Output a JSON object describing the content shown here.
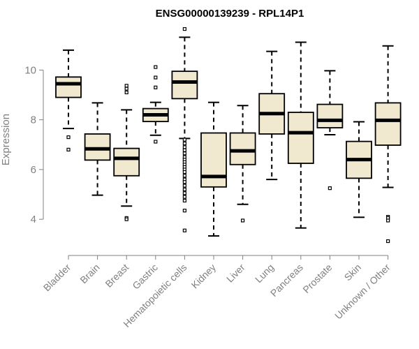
{
  "chart_data": {
    "type": "boxplot",
    "title": "ENSG00000139239 - RPL14P1",
    "xlabel": "",
    "ylabel": "Expression",
    "ylim": [
      3.05,
      11.75
    ],
    "yticks": [
      4,
      6,
      8,
      10
    ],
    "box_fill": "#f0e9d0",
    "box_stroke": "#000000",
    "categories": [
      "Bladder",
      "Brain",
      "Breast",
      "Gastric",
      "Hematopoietic cells",
      "Kidney",
      "Liver",
      "Lung",
      "Pancreas",
      "Prostate",
      "Skin",
      "Unknown / Other"
    ],
    "series": [
      {
        "name": "Bladder",
        "whisker_low": 7.65,
        "q1": 8.9,
        "median": 9.45,
        "q3": 9.72,
        "whisker_high": 10.8,
        "outliers": [
          7.3,
          6.8
        ]
      },
      {
        "name": "Brain",
        "whisker_low": 4.97,
        "q1": 6.38,
        "median": 6.83,
        "q3": 7.43,
        "whisker_high": 8.68,
        "outliers": []
      },
      {
        "name": "Breast",
        "whisker_low": 4.53,
        "q1": 5.75,
        "median": 6.45,
        "q3": 6.85,
        "whisker_high": 8.4,
        "outliers": [
          9.37,
          9.25,
          9.1,
          4.05,
          4.0
        ]
      },
      {
        "name": "Gastric",
        "whisker_low": 7.38,
        "q1": 7.93,
        "median": 8.2,
        "q3": 8.45,
        "whisker_high": 8.7,
        "outliers": [
          10.12,
          9.7,
          9.3,
          7.12
        ]
      },
      {
        "name": "Hematopoietic cells",
        "whisker_low": 7.25,
        "q1": 8.85,
        "median": 9.52,
        "q3": 9.95,
        "whisker_high": 11.32,
        "outliers": [
          11.65,
          7.2,
          7.05,
          6.9,
          6.78,
          6.65,
          6.5,
          6.4,
          6.3,
          6.2,
          6.1,
          6.0,
          5.9,
          5.75,
          5.6,
          5.5,
          5.35,
          5.2,
          5.05,
          4.9,
          4.75,
          4.35,
          3.55
        ]
      },
      {
        "name": "Kidney",
        "whisker_low": 3.33,
        "q1": 5.3,
        "median": 5.72,
        "q3": 7.47,
        "whisker_high": 8.7,
        "outliers": []
      },
      {
        "name": "Liver",
        "whisker_low": 4.6,
        "q1": 6.2,
        "median": 6.75,
        "q3": 7.47,
        "whisker_high": 8.57,
        "outliers": [
          3.95
        ]
      },
      {
        "name": "Lung",
        "whisker_low": 5.6,
        "q1": 7.43,
        "median": 8.25,
        "q3": 9.05,
        "whisker_high": 10.75,
        "outliers": []
      },
      {
        "name": "Pancreas",
        "whisker_low": 3.65,
        "q1": 6.25,
        "median": 7.48,
        "q3": 8.3,
        "whisker_high": 11.12,
        "outliers": []
      },
      {
        "name": "Prostate",
        "whisker_low": 7.4,
        "q1": 7.68,
        "median": 7.98,
        "q3": 8.62,
        "whisker_high": 9.97,
        "outliers": [
          5.25
        ]
      },
      {
        "name": "Skin",
        "whisker_low": 4.08,
        "q1": 5.65,
        "median": 6.4,
        "q3": 7.13,
        "whisker_high": 7.92,
        "outliers": []
      },
      {
        "name": "Unknown / Other",
        "whisker_low": 5.28,
        "q1": 6.98,
        "median": 7.98,
        "q3": 8.68,
        "whisker_high": 10.97,
        "outliers": [
          4.1,
          4.05,
          3.95,
          3.12
        ]
      }
    ]
  }
}
